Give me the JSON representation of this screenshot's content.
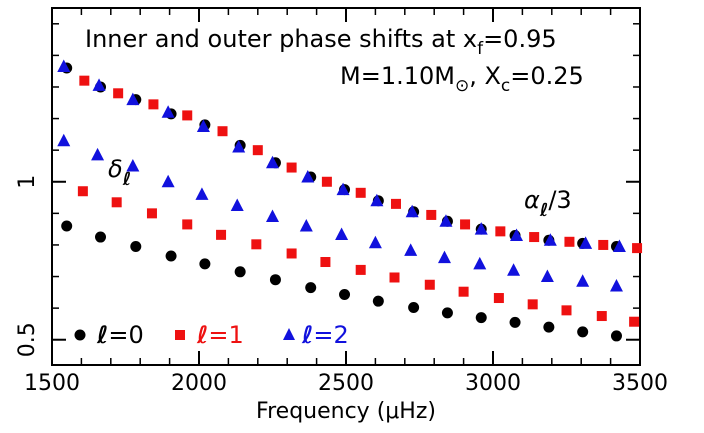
{
  "chart_data": {
    "type": "scatter",
    "title_line1": "Inner and outer phase shifts at x",
    "title_line1_sub": "f",
    "title_line1_tail": "=0.95",
    "title_line2_pre": "M=1.10M",
    "title_line2_mid": ", X",
    "title_line2_sub": "c",
    "title_line2_tail": "=0.25",
    "xlabel": "Frequency (μHz)",
    "ylabel": "",
    "xlim": [
      1500,
      3500
    ],
    "ylim": [
      0.42,
      1.55
    ],
    "x_ticks": [
      "1500",
      "2000",
      "2500",
      "3000",
      "3500"
    ],
    "y_ticks": [
      "0.5",
      "1"
    ],
    "annotations": {
      "delta": "δ",
      "delta_sub": "ℓ",
      "alpha": "α",
      "alpha_sub": "ℓ",
      "alpha_tail": "/3"
    },
    "legend": [
      {
        "symbol": "ℓ",
        "text": "=0",
        "color": "#000000",
        "marker": "circle"
      },
      {
        "symbol": "ℓ",
        "text": "=1",
        "color": "#ee1111",
        "marker": "square"
      },
      {
        "symbol": "ℓ",
        "text": "=2",
        "color": "#1111dd",
        "marker": "triangle"
      }
    ],
    "series": [
      {
        "group": "delta",
        "l": 0,
        "color": "#000000",
        "marker": "circle",
        "x": [
          1550,
          1665,
          1785,
          1905,
          2020,
          2140,
          2260,
          2380,
          2495,
          2610,
          2730,
          2845,
          2960,
          3075,
          3190,
          3305,
          3420
        ],
        "y": [
          0.86,
          0.825,
          0.795,
          0.765,
          0.74,
          0.715,
          0.69,
          0.665,
          0.643,
          0.622,
          0.602,
          0.585,
          0.57,
          0.555,
          0.54,
          0.525,
          0.512
        ]
      },
      {
        "group": "delta",
        "l": 1,
        "color": "#ee1111",
        "marker": "square",
        "x": [
          1605,
          1720,
          1840,
          1960,
          2075,
          2195,
          2315,
          2430,
          2550,
          2665,
          2785,
          2900,
          3020,
          3135,
          3250,
          3370,
          3480
        ],
        "y": [
          0.97,
          0.935,
          0.9,
          0.865,
          0.832,
          0.802,
          0.773,
          0.746,
          0.721,
          0.697,
          0.674,
          0.652,
          0.632,
          0.612,
          0.593,
          0.575,
          0.557
        ]
      },
      {
        "group": "delta",
        "l": 2,
        "color": "#1111dd",
        "marker": "triangle",
        "x": [
          1540,
          1655,
          1775,
          1895,
          2010,
          2130,
          2250,
          2365,
          2485,
          2600,
          2720,
          2835,
          2955,
          3070,
          3185,
          3305,
          3420
        ],
        "y": [
          1.13,
          1.085,
          1.05,
          1.0,
          0.96,
          0.925,
          0.89,
          0.86,
          0.833,
          0.807,
          0.783,
          0.76,
          0.74,
          0.72,
          0.7,
          0.685,
          0.67
        ]
      },
      {
        "group": "alpha",
        "l": 0,
        "color": "#000000",
        "marker": "circle",
        "x": [
          1550,
          1665,
          1785,
          1905,
          2020,
          2140,
          2260,
          2380,
          2495,
          2610,
          2730,
          2845,
          2960,
          3075,
          3190,
          3305,
          3420
        ],
        "y": [
          1.36,
          1.3,
          1.26,
          1.215,
          1.18,
          1.115,
          1.06,
          1.015,
          0.975,
          0.94,
          0.905,
          0.875,
          0.85,
          0.83,
          0.815,
          0.805,
          0.795
        ]
      },
      {
        "group": "alpha",
        "l": 1,
        "color": "#ee1111",
        "marker": "square",
        "x": [
          1610,
          1725,
          1845,
          1960,
          2080,
          2200,
          2315,
          2435,
          2550,
          2670,
          2790,
          2905,
          3025,
          3140,
          3260,
          3375,
          3490
        ],
        "y": [
          1.32,
          1.28,
          1.245,
          1.21,
          1.16,
          1.1,
          1.045,
          1.0,
          0.965,
          0.93,
          0.895,
          0.865,
          0.843,
          0.825,
          0.81,
          0.8,
          0.79
        ]
      },
      {
        "group": "alpha",
        "l": 2,
        "color": "#1111dd",
        "marker": "triangle",
        "x": [
          1540,
          1660,
          1775,
          1895,
          2015,
          2135,
          2250,
          2370,
          2490,
          2605,
          2725,
          2840,
          2960,
          3080,
          3195,
          3315,
          3430
        ],
        "y": [
          1.365,
          1.305,
          1.26,
          1.22,
          1.175,
          1.11,
          1.06,
          1.015,
          0.975,
          0.94,
          0.905,
          0.875,
          0.85,
          0.83,
          0.815,
          0.805,
          0.795
        ]
      }
    ]
  }
}
